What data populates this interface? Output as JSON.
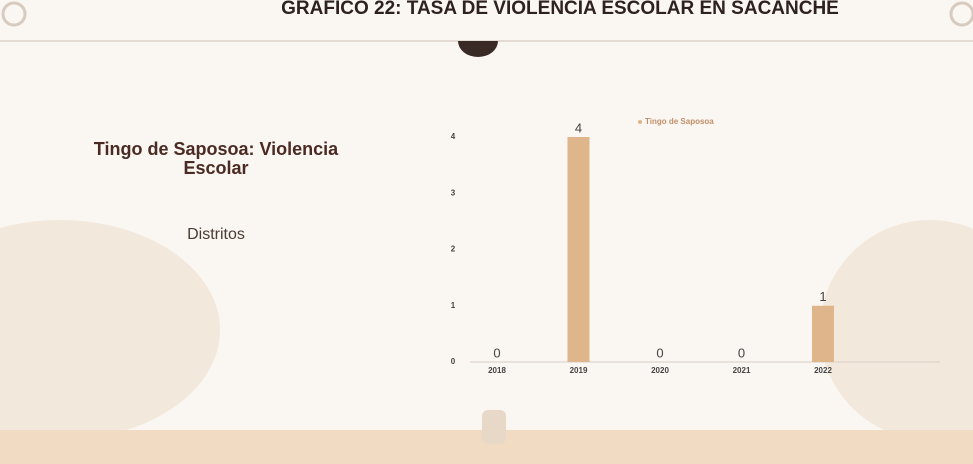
{
  "header": {
    "title": "GRAFICO 22: TASA DE VIOLENCIA ESCOLAR EN SACANCHE"
  },
  "chart_data": {
    "type": "bar",
    "title": "Tingo de Saposoa: Violencia Escolar",
    "subtitle": "Distritos",
    "categories": [
      "2018",
      "2019",
      "2020",
      "2021",
      "2022"
    ],
    "series": [
      {
        "name": "Tingo de Saposoa",
        "color": "#dfb68b",
        "values": [
          0,
          4,
          0,
          0,
          1
        ]
      }
    ],
    "ylim": [
      0,
      4
    ],
    "yticks": [
      0,
      1,
      2,
      3,
      4
    ],
    "legend": "top",
    "data_labels": true
  }
}
